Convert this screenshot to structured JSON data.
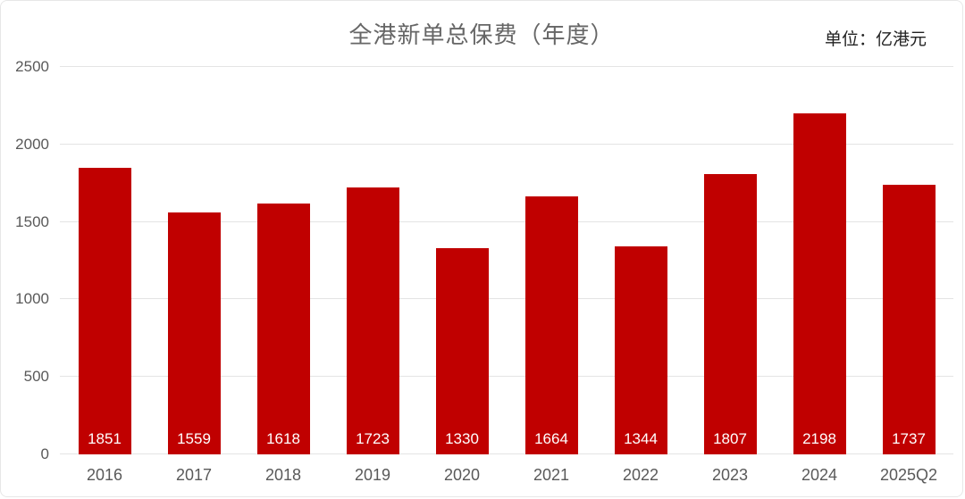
{
  "header": {
    "title": "全港新单总保费（年度）",
    "unit_label": "单位：亿港元"
  },
  "chart_data": {
    "type": "bar",
    "title": "全港新单总保费（年度）",
    "unit": "亿港元",
    "categories": [
      "2016",
      "2017",
      "2018",
      "2019",
      "2020",
      "2021",
      "2022",
      "2023",
      "2024",
      "2025Q2"
    ],
    "values": [
      1851,
      1559,
      1618,
      1723,
      1330,
      1664,
      1344,
      1807,
      2198,
      1737
    ],
    "xlabel": "",
    "ylabel": "",
    "ylim": [
      0,
      2500
    ],
    "yticks": [
      0,
      500,
      1000,
      1500,
      2000,
      2500
    ],
    "grid": true,
    "legend": false,
    "bar_color": "#c00000",
    "value_label_color": "#ffffff",
    "gridline_color": "#e4e4e4",
    "axis_text_color": "#595959"
  }
}
